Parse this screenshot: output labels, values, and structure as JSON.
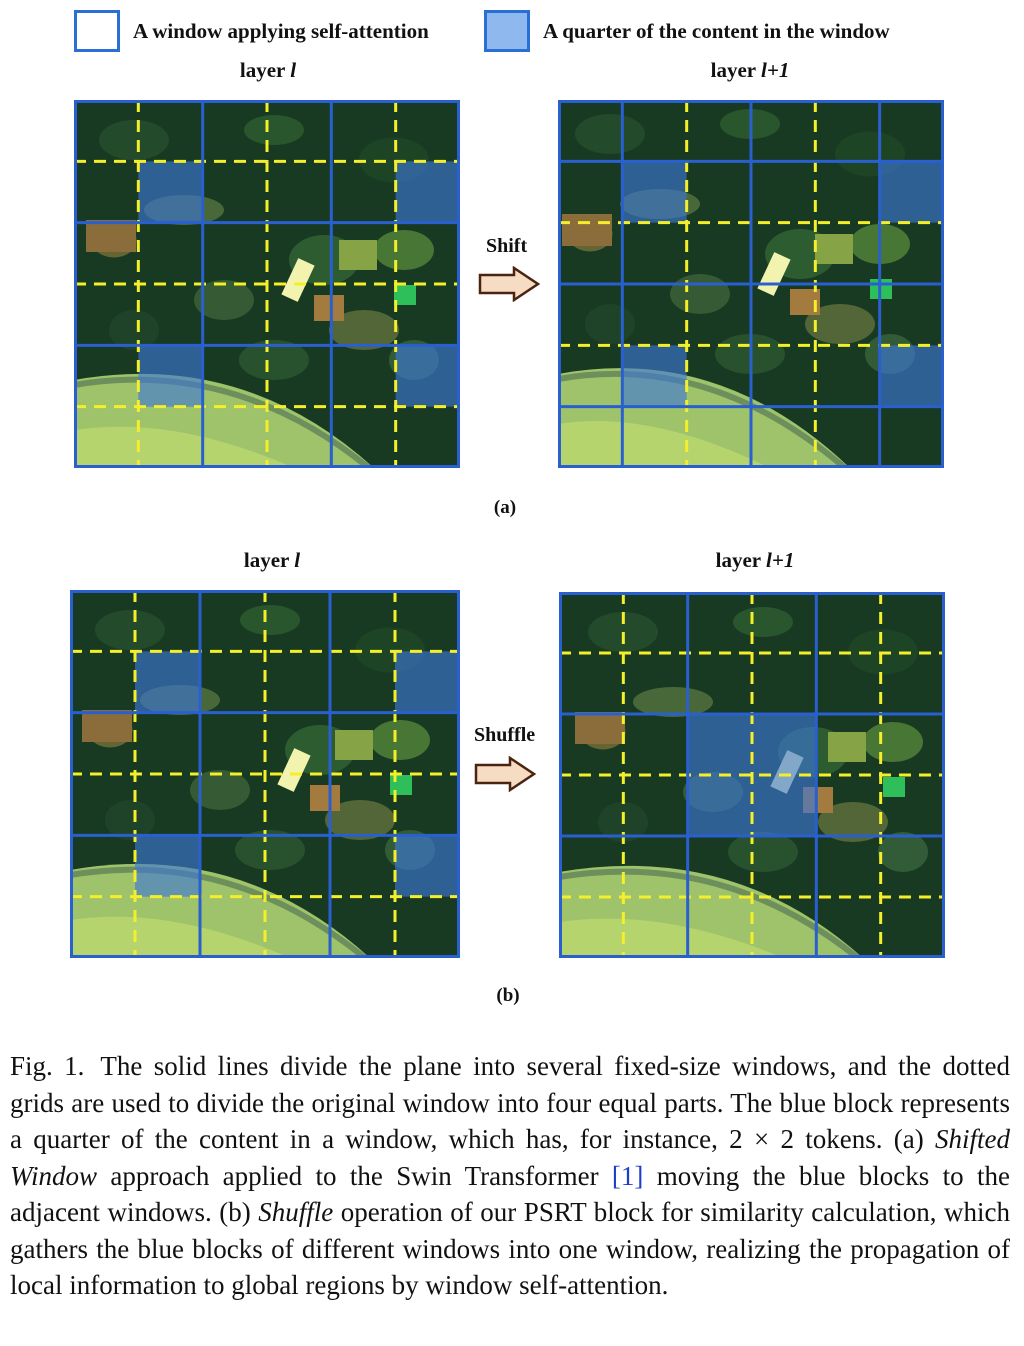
{
  "legend": {
    "window_label": "A window applying self-attention",
    "quarter_label": "A quarter of the content in the window",
    "window_color": "#2a6fd6",
    "quarter_color": "#8fb8ee"
  },
  "figure_a": {
    "left_title": "layer ",
    "left_title_var": "l",
    "right_title": "layer ",
    "right_title_var": "l+1",
    "arrow_label": "Shift",
    "sublabel": "(a)"
  },
  "figure_b": {
    "left_title": "layer ",
    "left_title_var": "l",
    "right_title": "layer ",
    "right_title_var": "l+1",
    "arrow_label": "Shuffle",
    "sublabel": "(b)"
  },
  "caption": {
    "fig_label": "Fig. 1.",
    "part1": "The solid lines divide the plane into several fixed-size windows, and the dotted grids are used to divide the original window into four equal parts. The blue block represents a quarter of the content in a window, which has, for instance, 2 × 2 tokens. (a) ",
    "shifted_window": "Shifted Window",
    "part2": " approach applied to the Swin Transformer ",
    "ref": "[1]",
    "part3": " moving the blue blocks to the adjacent windows. (b) ",
    "shuffle": "Shuffle",
    "part4": " operation of our PSRT block for similarity calculation, which gathers the blue blocks of different windows into one window, realizing the propagation of local information to global regions by window self-attention."
  },
  "colors": {
    "solid_grid": "#2a5fd0",
    "dashed_grid": "#f4ef2a",
    "arrow_fill": "#f7dcc4",
    "arrow_stroke": "#4a2410"
  },
  "icons": [
    "right-arrow-icon"
  ]
}
